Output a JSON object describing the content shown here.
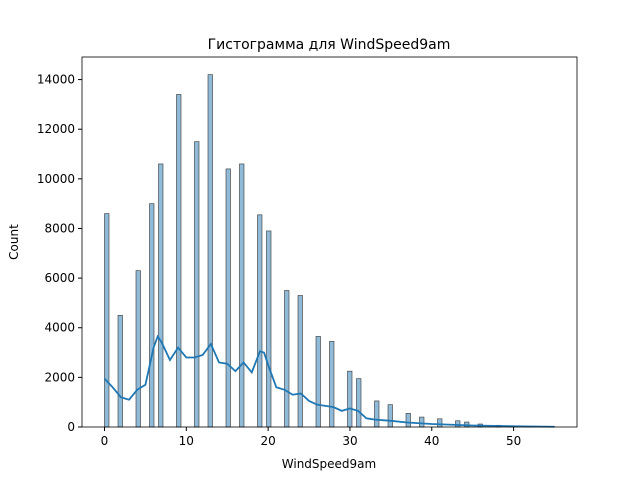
{
  "chart_data": {
    "type": "histogram",
    "title": "Гистограмма для WindSpeed9am",
    "x_label": "WindSpeed9am",
    "y_label": "Count",
    "color": "#1f77b4",
    "bins": [
      0,
      0.55,
      1.1,
      1.65,
      2.2,
      2.75,
      3.3,
      3.85,
      4.4,
      4.95,
      5.5,
      6.05,
      6.6,
      7.15,
      7.7,
      8.25,
      8.8,
      9.35,
      9.9,
      10.45,
      11,
      11.55,
      12.1,
      12.65,
      13.2,
      13.75,
      14.3,
      14.85,
      15.4,
      15.95,
      16.5,
      17.05,
      17.6,
      18.15,
      18.7,
      19.25,
      19.8,
      20.35,
      20.9,
      21.45,
      22,
      22.55,
      23.1,
      23.65,
      24.2,
      24.75,
      25.3,
      25.85,
      26.4,
      26.95,
      27.5,
      28.05,
      28.6,
      29.15,
      29.7,
      30.25,
      30.8,
      31.35,
      31.9,
      32.45,
      33,
      33.55,
      34.1,
      34.65,
      35.2,
      35.75,
      36.3,
      36.85,
      37.4,
      37.95,
      38.5,
      39.05,
      39.6,
      40.15,
      40.7,
      41.25,
      41.8,
      42.35,
      42.9,
      43.45,
      44,
      44.55,
      45.1,
      45.65,
      46.2,
      46.75,
      47.3,
      47.85,
      48.4,
      48.95,
      49.5,
      50.05,
      50.6,
      51.15,
      51.7,
      52.25,
      52.8,
      53.35,
      53.9,
      54.45,
      55
    ],
    "counts": [
      8600,
      0,
      0,
      4500,
      0,
      0,
      0,
      6300,
      0,
      0,
      9000,
      0,
      10600,
      0,
      0,
      0,
      13400,
      0,
      0,
      0,
      11500,
      0,
      0,
      14200,
      0,
      0,
      0,
      10400,
      0,
      0,
      10600,
      0,
      0,
      0,
      8550,
      0,
      7900,
      0,
      0,
      0,
      5500,
      0,
      0,
      5300,
      0,
      0,
      0,
      3650,
      0,
      0,
      3450,
      0,
      0,
      0,
      2250,
      0,
      1950,
      0,
      0,
      0,
      1050,
      0,
      0,
      900,
      0,
      0,
      0,
      550,
      0,
      0,
      400,
      0,
      0,
      0,
      330,
      0,
      0,
      0,
      250,
      0,
      200,
      0,
      0,
      120,
      0,
      0,
      0,
      70,
      0,
      0,
      50,
      0,
      0,
      0,
      30,
      0,
      0,
      0,
      20,
      15
    ],
    "kde": {
      "x": [
        0,
        1,
        2,
        3,
        4,
        5,
        6,
        6.5,
        7,
        8,
        9,
        10,
        11,
        12,
        13,
        14,
        15,
        16,
        17,
        18,
        19,
        19.5,
        20,
        21,
        22,
        23,
        24,
        25,
        26,
        27,
        28,
        29,
        30,
        31,
        32,
        33,
        35,
        37,
        40,
        45,
        50,
        55
      ],
      "y": [
        1950,
        1600,
        1200,
        1100,
        1500,
        1700,
        3200,
        3650,
        3400,
        2700,
        3200,
        2800,
        2800,
        2900,
        3350,
        2600,
        2550,
        2250,
        2600,
        2200,
        3050,
        3000,
        2500,
        1600,
        1500,
        1300,
        1350,
        1050,
        900,
        850,
        800,
        650,
        750,
        650,
        350,
        300,
        250,
        180,
        120,
        60,
        30,
        10
      ]
    },
    "xlim": [
      -2.75,
      57.75
    ],
    "xticks": [
      0,
      10,
      20,
      30,
      40,
      50
    ],
    "ylim": [
      0,
      14910
    ],
    "yticks": [
      0,
      2000,
      4000,
      6000,
      8000,
      10000,
      12000,
      14000
    ]
  }
}
